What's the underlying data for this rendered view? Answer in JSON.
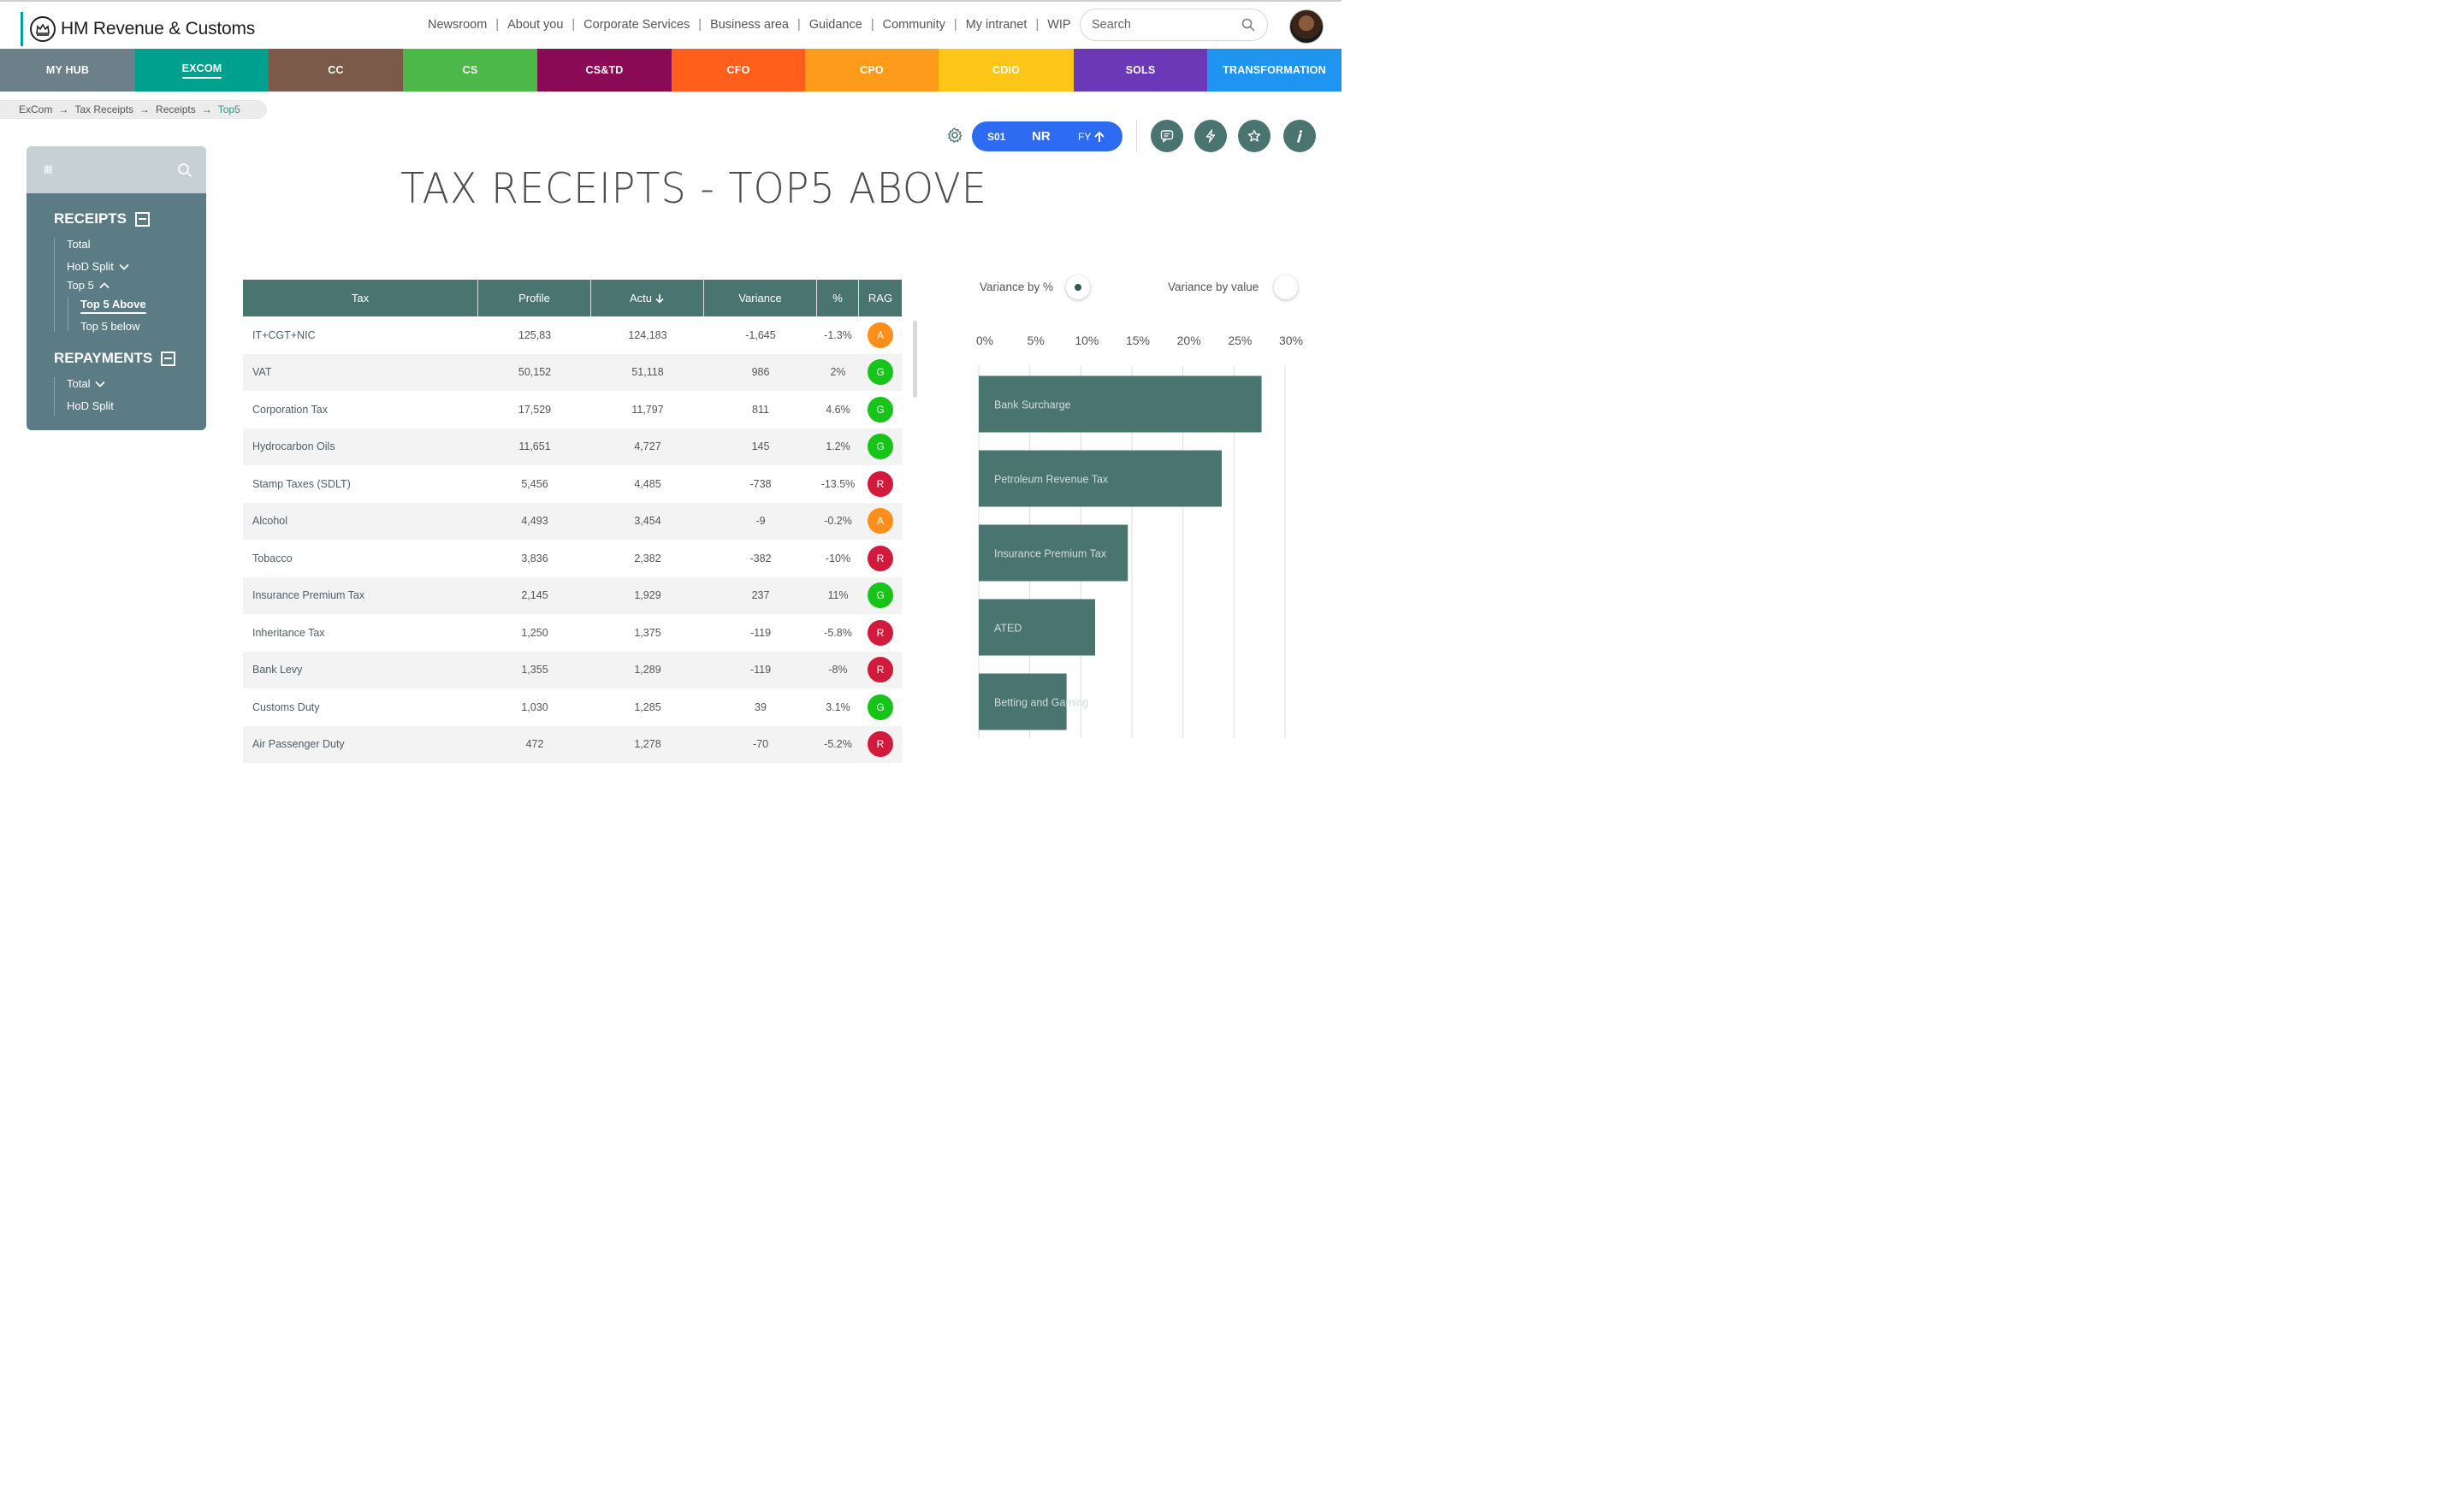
{
  "header": {
    "brand": "HM Revenue & Customs",
    "nav": [
      "Newsroom",
      "About you",
      "Corporate Services",
      "Business area",
      "Guidance",
      "Community",
      "My intranet",
      "WIP"
    ],
    "search_placeholder": "Search"
  },
  "divisions": [
    {
      "label": "MY HUB",
      "color": "#6b8088"
    },
    {
      "label": "EXCOM",
      "color": "#00a08f",
      "active": true
    },
    {
      "label": "CC",
      "color": "#7b5a4a"
    },
    {
      "label": "CS",
      "color": "#4cb84a"
    },
    {
      "label": "CS&TD",
      "color": "#8a0a55"
    },
    {
      "label": "CFO",
      "color": "#ff5e1b"
    },
    {
      "label": "CPO",
      "color": "#ff9b1a"
    },
    {
      "label": "CDIO",
      "color": "#ffc61a"
    },
    {
      "label": "SOLS",
      "color": "#6b38b8"
    },
    {
      "label": "TRANSFORMATION",
      "color": "#1e95f0"
    }
  ],
  "breadcrumb": {
    "items": [
      "ExCom",
      "Tax Receipts",
      "Receipts"
    ],
    "current": "Top5"
  },
  "toolbar": {
    "period_a": "S01",
    "period_b": "NR",
    "period_c": "FY"
  },
  "sidebar": {
    "receipts_title": "RECEIPTS",
    "receipts_items": {
      "total": "Total",
      "hod_split": "HoD Split",
      "top5": "Top 5",
      "top5_above": "Top 5 Above",
      "top5_below": "Top 5 below"
    },
    "repayments_title": "REPAYMENTS",
    "repayments_items": {
      "total": "Total",
      "hod_split": "HoD Split"
    }
  },
  "page_title": "TAX RECEIPTS - TOP5 ABOVE",
  "table": {
    "columns": [
      "Tax",
      "Profile",
      "Actu",
      "Variance",
      "%",
      "RAG"
    ],
    "rows": [
      {
        "tax": "IT+CGT+NIC",
        "profile": "125,83",
        "actual": "124,183",
        "variance": "-1,645",
        "pct": "-1.3%",
        "rag": "A"
      },
      {
        "tax": "VAT",
        "profile": "50,152",
        "actual": "51,118",
        "variance": "986",
        "pct": "2%",
        "rag": "G"
      },
      {
        "tax": "Corporation Tax",
        "profile": "17,529",
        "actual": "11,797",
        "variance": "811",
        "pct": "4.6%",
        "rag": "G"
      },
      {
        "tax": "Hydrocarbon Oils",
        "profile": "11,651",
        "actual": "4,727",
        "variance": "145",
        "pct": "1.2%",
        "rag": "G"
      },
      {
        "tax": "Stamp Taxes (SDLT)",
        "profile": "5,456",
        "actual": "4,485",
        "variance": "-738",
        "pct": "-13.5%",
        "rag": "R"
      },
      {
        "tax": "Alcohol",
        "profile": "4,493",
        "actual": "3,454",
        "variance": "-9",
        "pct": "-0.2%",
        "rag": "A"
      },
      {
        "tax": "Tobacco",
        "profile": "3,836",
        "actual": "2,382",
        "variance": "-382",
        "pct": "-10%",
        "rag": "R"
      },
      {
        "tax": "Insurance Premium Tax",
        "profile": "2,145",
        "actual": "1,929",
        "variance": "237",
        "pct": "11%",
        "rag": "G"
      },
      {
        "tax": "Inheritance Tax",
        "profile": "1,250",
        "actual": "1,375",
        "variance": "-119",
        "pct": "-5.8%",
        "rag": "R"
      },
      {
        "tax": "Bank Levy",
        "profile": "1,355",
        "actual": "1,289",
        "variance": "-119",
        "pct": "-8%",
        "rag": "R"
      },
      {
        "tax": "Customs Duty",
        "profile": "1,030",
        "actual": "1,285",
        "variance": "39",
        "pct": "3.1%",
        "rag": "G"
      },
      {
        "tax": "Air Passenger Duty",
        "profile": "472",
        "actual": "1,278",
        "variance": "-70",
        "pct": "-5.2%",
        "rag": "R"
      }
    ],
    "rag_colors": {
      "A": "#ff8f1a",
      "G": "#17c41a",
      "R": "#d11a3c"
    }
  },
  "toggles": {
    "by_pct": "Variance by %",
    "by_value": "Variance by value",
    "selected": "by_pct"
  },
  "chart_data": {
    "type": "bar",
    "orientation": "horizontal",
    "categories": [
      "Bank Surcharge",
      "Petroleum Revenue Tax",
      "Insurance Premium Tax",
      "ATED",
      "Betting and Gaming"
    ],
    "values": [
      27.7,
      23.8,
      14.6,
      11.4,
      8.6
    ],
    "tick_labels": [
      "0%",
      "5%",
      "10%",
      "15%",
      "20%",
      "25%",
      "30%"
    ],
    "xlim": [
      0,
      30
    ],
    "grid": true,
    "bar_color": "#4a7470"
  }
}
